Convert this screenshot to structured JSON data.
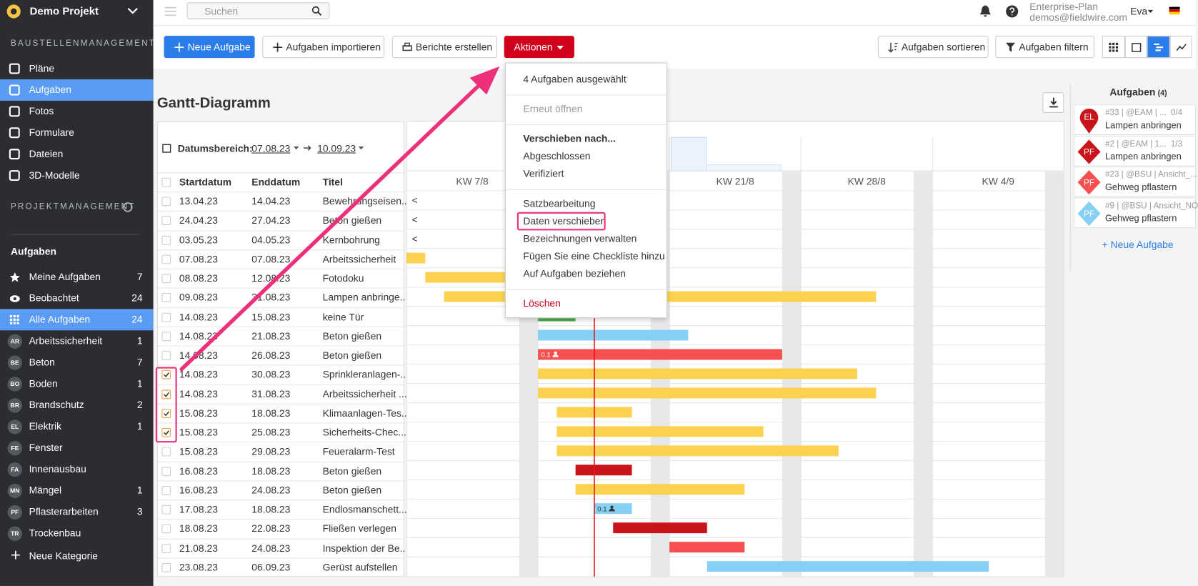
{
  "sidebar": {
    "project": "Demo Projekt",
    "section1": "BAUSTELLENMANAGEMENT",
    "nav": [
      {
        "label": "Pläne"
      },
      {
        "label": "Aufgaben",
        "active": true
      },
      {
        "label": "Fotos"
      },
      {
        "label": "Formulare"
      },
      {
        "label": "Dateien"
      },
      {
        "label": "3D-Modelle"
      }
    ],
    "section2": "PROJEKTMANAGEMENT",
    "tasks_heading": "Aufgaben",
    "filters": [
      {
        "label": "Meine Aufgaben",
        "count": "7"
      },
      {
        "label": "Beobachtet",
        "count": "24"
      },
      {
        "label": "Alle Aufgaben",
        "count": "24",
        "active": true
      }
    ],
    "categories": [
      {
        "abbr": "AR",
        "label": "Arbeitssicherheit",
        "count": "1"
      },
      {
        "abbr": "BE",
        "label": "Beton",
        "count": "7"
      },
      {
        "abbr": "BO",
        "label": "Boden",
        "count": "1"
      },
      {
        "abbr": "BR",
        "label": "Brandschutz",
        "count": "2"
      },
      {
        "abbr": "EL",
        "label": "Elektrik",
        "count": "1"
      },
      {
        "abbr": "FE",
        "label": "Fenster"
      },
      {
        "abbr": "FA",
        "label": "Innenausbau"
      },
      {
        "abbr": "MN",
        "label": "Mängel",
        "count": "1"
      },
      {
        "abbr": "PF",
        "label": "Pflasterarbeiten",
        "count": "3"
      },
      {
        "abbr": "TR",
        "label": "Trockenbau"
      }
    ],
    "new_category": "Neue Kategorie"
  },
  "topbar": {
    "search": "Suchen",
    "plan": "Enterprise-Plan",
    "email": "demos@fieldwire.com",
    "user": "Eva"
  },
  "toolbar": {
    "new_task": "Neue Aufgabe",
    "import": "Aufgaben importieren",
    "reports": "Berichte erstellen",
    "actions": "Aktionen",
    "sort": "Aufgaben sortieren",
    "filter": "Aufgaben filtern"
  },
  "gantt": {
    "title": "Gantt-Diagramm",
    "range_label": "Datumsbereich:",
    "range_start": "07.08.23",
    "range_end": "10.09.23",
    "columns": [
      "Startdatum",
      "Enddatum",
      "Titel"
    ],
    "weeks": [
      "KW 7/8",
      null,
      "KW 21/8",
      "KW 28/8",
      "KW 4/9"
    ],
    "rows": [
      {
        "start": "13.04.23",
        "end": "14.04.23",
        "title": "Bewehrungseisen...",
        "marker": "<"
      },
      {
        "start": "24.04.23",
        "end": "27.04.23",
        "title": "Beton gießen",
        "marker": "<"
      },
      {
        "start": "03.05.23",
        "end": "04.05.23",
        "title": "Kernbohrung",
        "marker": "<"
      },
      {
        "start": "07.08.23",
        "end": "07.08.23",
        "title": "Arbeitssicherheit",
        "color": "#fad24f"
      },
      {
        "start": "08.08.23",
        "end": "12.08.23",
        "title": "Fotodoku",
        "color": "#fad24f"
      },
      {
        "start": "09.08.23",
        "end": "31.08.23",
        "title": "Lampen anbringe...",
        "color": "#fad24f"
      },
      {
        "start": "14.08.23",
        "end": "15.08.23",
        "title": "keine Tür",
        "color": "#4caf50"
      },
      {
        "start": "14.08.23",
        "end": "21.08.23",
        "title": "Beton gießen",
        "color": "#86cff5"
      },
      {
        "start": "14.08.23",
        "end": "26.08.23",
        "title": "Beton gießen",
        "color": "#f85050",
        "bar_label": "0.1"
      },
      {
        "start": "14.08.23",
        "end": "30.08.23",
        "title": "Sprinkleranlagen-...",
        "color": "#fad24f",
        "checked": true
      },
      {
        "start": "14.08.23",
        "end": "31.08.23",
        "title": "Arbeitssicherheit ...",
        "color": "#fad24f",
        "checked": true
      },
      {
        "start": "15.08.23",
        "end": "18.08.23",
        "title": "Klimaanlagen-Tes...",
        "color": "#fad24f",
        "checked": true
      },
      {
        "start": "15.08.23",
        "end": "25.08.23",
        "title": "Sicherheits-Chec...",
        "color": "#fad24f",
        "checked": true
      },
      {
        "start": "15.08.23",
        "end": "29.08.23",
        "title": "Feueralarm-Test",
        "color": "#fad24f"
      },
      {
        "start": "16.08.23",
        "end": "18.08.23",
        "title": "Beton gießen",
        "color": "#c8151b"
      },
      {
        "start": "16.08.23",
        "end": "24.08.23",
        "title": "Beton gießen",
        "color": "#fad24f"
      },
      {
        "start": "17.08.23",
        "end": "18.08.23",
        "title": "Endlosmanschett...",
        "color": "#86cff5",
        "bar_label": "0.1"
      },
      {
        "start": "18.08.23",
        "end": "22.08.23",
        "title": "Fließen verlegen",
        "color": "#c8151b"
      },
      {
        "start": "21.08.23",
        "end": "24.08.23",
        "title": "Inspektion der Be...",
        "color": "#f85050"
      },
      {
        "start": "23.08.23",
        "end": "06.09.23",
        "title": "Gerüst aufstellen",
        "color": "#86cff5"
      }
    ]
  },
  "menu": {
    "groups": [
      [
        {
          "label": "4 Aufgaben ausgewählt"
        }
      ],
      [
        {
          "label": "Erneut öffnen",
          "disabled": true
        }
      ],
      [
        {
          "label": "Verschieben nach...",
          "bold": true
        },
        {
          "label": "Abgeschlossen"
        },
        {
          "label": "Verifiziert"
        }
      ],
      [
        {
          "label": "Satzbearbeitung"
        },
        {
          "label": "Daten verschieben",
          "highlighted": true
        },
        {
          "label": "Bezeichnungen verwalten"
        },
        {
          "label": "Fügen Sie eine Checkliste hinzu"
        },
        {
          "label": "Auf Aufgaben beziehen"
        }
      ],
      [
        {
          "label": "Löschen",
          "danger": true
        }
      ]
    ]
  },
  "panel": {
    "title": "Aufgaben",
    "count": "(4)",
    "cards": [
      {
        "badge": "EL",
        "shape": "pin",
        "color": "#c8151b",
        "meta": "#33 | @EAM | ...",
        "progress": "0/4",
        "title": "Lampen anbringen"
      },
      {
        "badge": "PF",
        "shape": "diamond",
        "color": "#c8151b",
        "meta": "#2 | @EAM | 1...",
        "progress": "1/3",
        "title": "Lampen anbringen"
      },
      {
        "badge": "PF",
        "shape": "diamond",
        "color": "#f85050",
        "meta": "#23 | @BSU | Ansicht_...",
        "title": "Gehweg pflastern"
      },
      {
        "badge": "PF",
        "shape": "diamond",
        "color": "#86cff5",
        "meta": "#9 | @BSU | Ansicht_NO",
        "title": "Gehweg pflastern"
      }
    ],
    "new_task": "+ Neue Aufgabe"
  }
}
